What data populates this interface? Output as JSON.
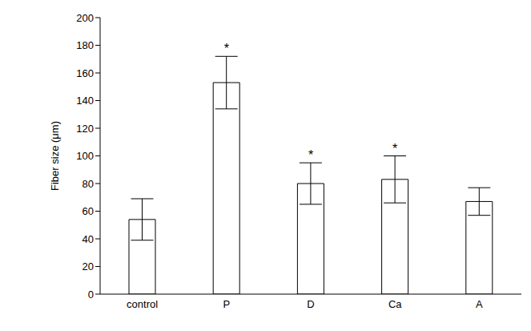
{
  "chart_data": {
    "type": "bar",
    "categories": [
      "control",
      "P",
      "D",
      "Ca",
      "A"
    ],
    "values": [
      54,
      153,
      80,
      83,
      67
    ],
    "errors": [
      15,
      19,
      15,
      17,
      10
    ],
    "color": "#ffffff",
    "ylabel": "Fiber size (μm)",
    "ylim": [
      0,
      200
    ],
    "yticks": [
      0,
      20,
      40,
      60,
      80,
      100,
      120,
      140,
      160,
      180,
      200
    ],
    "grid": false,
    "annotations": [
      {
        "category": "P",
        "text": "*"
      },
      {
        "category": "D",
        "text": "*"
      },
      {
        "category": "Ca",
        "text": "*"
      }
    ]
  }
}
